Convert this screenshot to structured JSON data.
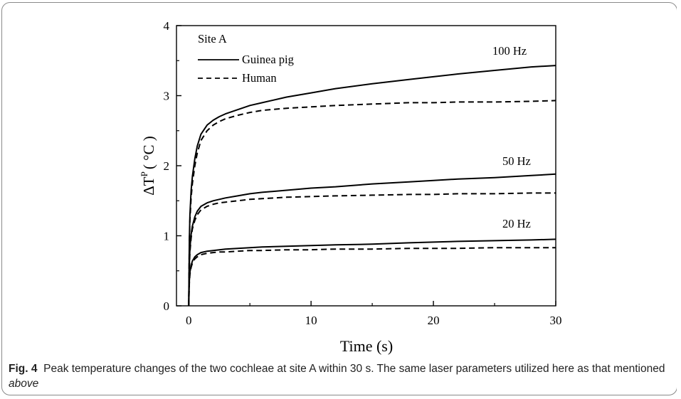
{
  "chart_data": {
    "type": "line",
    "xlabel": "Time (s)",
    "ylabel": "ΔT",
    "ylabel_sup": "P",
    "ylabel_unit": "( °C )",
    "xlim": [
      -1,
      30
    ],
    "ylim": [
      0,
      4
    ],
    "xticks": [
      0,
      10,
      20,
      30
    ],
    "yticks": [
      0,
      1,
      2,
      3,
      4
    ],
    "grid": false,
    "legend": {
      "position": "top-left",
      "title": "Site A",
      "entries": [
        {
          "name": "Guinea pig",
          "style": "solid"
        },
        {
          "name": "Human",
          "style": "dashed"
        }
      ]
    },
    "annotations": [
      "100 Hz",
      "50 Hz",
      "20 Hz"
    ],
    "series": [
      {
        "name": "Guinea pig",
        "group": "100 Hz",
        "style": "solid",
        "x": [
          0,
          0.05,
          0.1,
          0.2,
          0.3,
          0.5,
          0.7,
          1,
          1.5,
          2,
          2.5,
          3,
          4,
          5,
          6,
          8,
          10,
          12,
          15,
          18,
          20,
          22,
          25,
          28,
          30
        ],
        "y": [
          0,
          0.95,
          1.3,
          1.65,
          1.85,
          2.1,
          2.28,
          2.45,
          2.58,
          2.65,
          2.7,
          2.74,
          2.8,
          2.86,
          2.9,
          2.98,
          3.04,
          3.1,
          3.17,
          3.23,
          3.27,
          3.31,
          3.36,
          3.41,
          3.43
        ]
      },
      {
        "name": "Human",
        "group": "100 Hz",
        "style": "dashed",
        "x": [
          0,
          0.05,
          0.1,
          0.2,
          0.3,
          0.5,
          0.7,
          1,
          1.5,
          2,
          2.5,
          3,
          4,
          5,
          6,
          8,
          10,
          12,
          15,
          18,
          20,
          22,
          25,
          28,
          30
        ],
        "y": [
          0,
          0.9,
          1.22,
          1.55,
          1.75,
          2.0,
          2.18,
          2.36,
          2.5,
          2.58,
          2.63,
          2.67,
          2.72,
          2.76,
          2.79,
          2.82,
          2.84,
          2.86,
          2.88,
          2.9,
          2.9,
          2.91,
          2.91,
          2.92,
          2.93
        ]
      },
      {
        "name": "Guinea pig",
        "group": "50 Hz",
        "style": "solid",
        "x": [
          0,
          0.05,
          0.1,
          0.2,
          0.3,
          0.5,
          0.7,
          1,
          1.5,
          2,
          2.5,
          3,
          4,
          5,
          6,
          8,
          10,
          12,
          15,
          18,
          20,
          22,
          25,
          28,
          30
        ],
        "y": [
          0,
          0.6,
          0.82,
          1.02,
          1.14,
          1.27,
          1.35,
          1.42,
          1.47,
          1.5,
          1.52,
          1.54,
          1.57,
          1.6,
          1.62,
          1.65,
          1.68,
          1.7,
          1.74,
          1.77,
          1.79,
          1.81,
          1.83,
          1.86,
          1.88
        ]
      },
      {
        "name": "Human",
        "group": "50 Hz",
        "style": "dashed",
        "x": [
          0,
          0.05,
          0.1,
          0.2,
          0.3,
          0.5,
          0.7,
          1,
          1.5,
          2,
          2.5,
          3,
          4,
          5,
          6,
          8,
          10,
          12,
          15,
          18,
          20,
          22,
          25,
          28,
          30
        ],
        "y": [
          0,
          0.55,
          0.77,
          0.97,
          1.1,
          1.22,
          1.3,
          1.37,
          1.42,
          1.45,
          1.47,
          1.48,
          1.5,
          1.52,
          1.53,
          1.55,
          1.56,
          1.57,
          1.58,
          1.59,
          1.59,
          1.6,
          1.6,
          1.61,
          1.61
        ]
      },
      {
        "name": "Guinea pig",
        "group": "20 Hz",
        "style": "solid",
        "x": [
          0,
          0.05,
          0.1,
          0.2,
          0.3,
          0.5,
          0.7,
          1,
          1.5,
          2,
          2.5,
          3,
          4,
          5,
          6,
          8,
          10,
          12,
          15,
          18,
          20,
          22,
          25,
          28,
          30
        ],
        "y": [
          0,
          0.36,
          0.48,
          0.58,
          0.64,
          0.7,
          0.73,
          0.76,
          0.78,
          0.79,
          0.8,
          0.81,
          0.82,
          0.83,
          0.84,
          0.85,
          0.86,
          0.87,
          0.88,
          0.9,
          0.91,
          0.92,
          0.93,
          0.94,
          0.95
        ]
      },
      {
        "name": "Human",
        "group": "20 Hz",
        "style": "dashed",
        "x": [
          0,
          0.05,
          0.1,
          0.2,
          0.3,
          0.5,
          0.7,
          1,
          1.5,
          2,
          2.5,
          3,
          4,
          5,
          6,
          8,
          10,
          12,
          15,
          18,
          20,
          22,
          25,
          28,
          30
        ],
        "y": [
          0,
          0.33,
          0.45,
          0.55,
          0.61,
          0.67,
          0.7,
          0.73,
          0.75,
          0.76,
          0.77,
          0.77,
          0.78,
          0.79,
          0.79,
          0.8,
          0.8,
          0.81,
          0.81,
          0.82,
          0.82,
          0.82,
          0.83,
          0.83,
          0.83
        ]
      }
    ]
  },
  "caption": {
    "label": "Fig. 4",
    "text_before": "Peak temperature changes of the two cochleae at site A within 30 s. The same laser parameters utilized here as that mentioned ",
    "emphasis": "above"
  }
}
